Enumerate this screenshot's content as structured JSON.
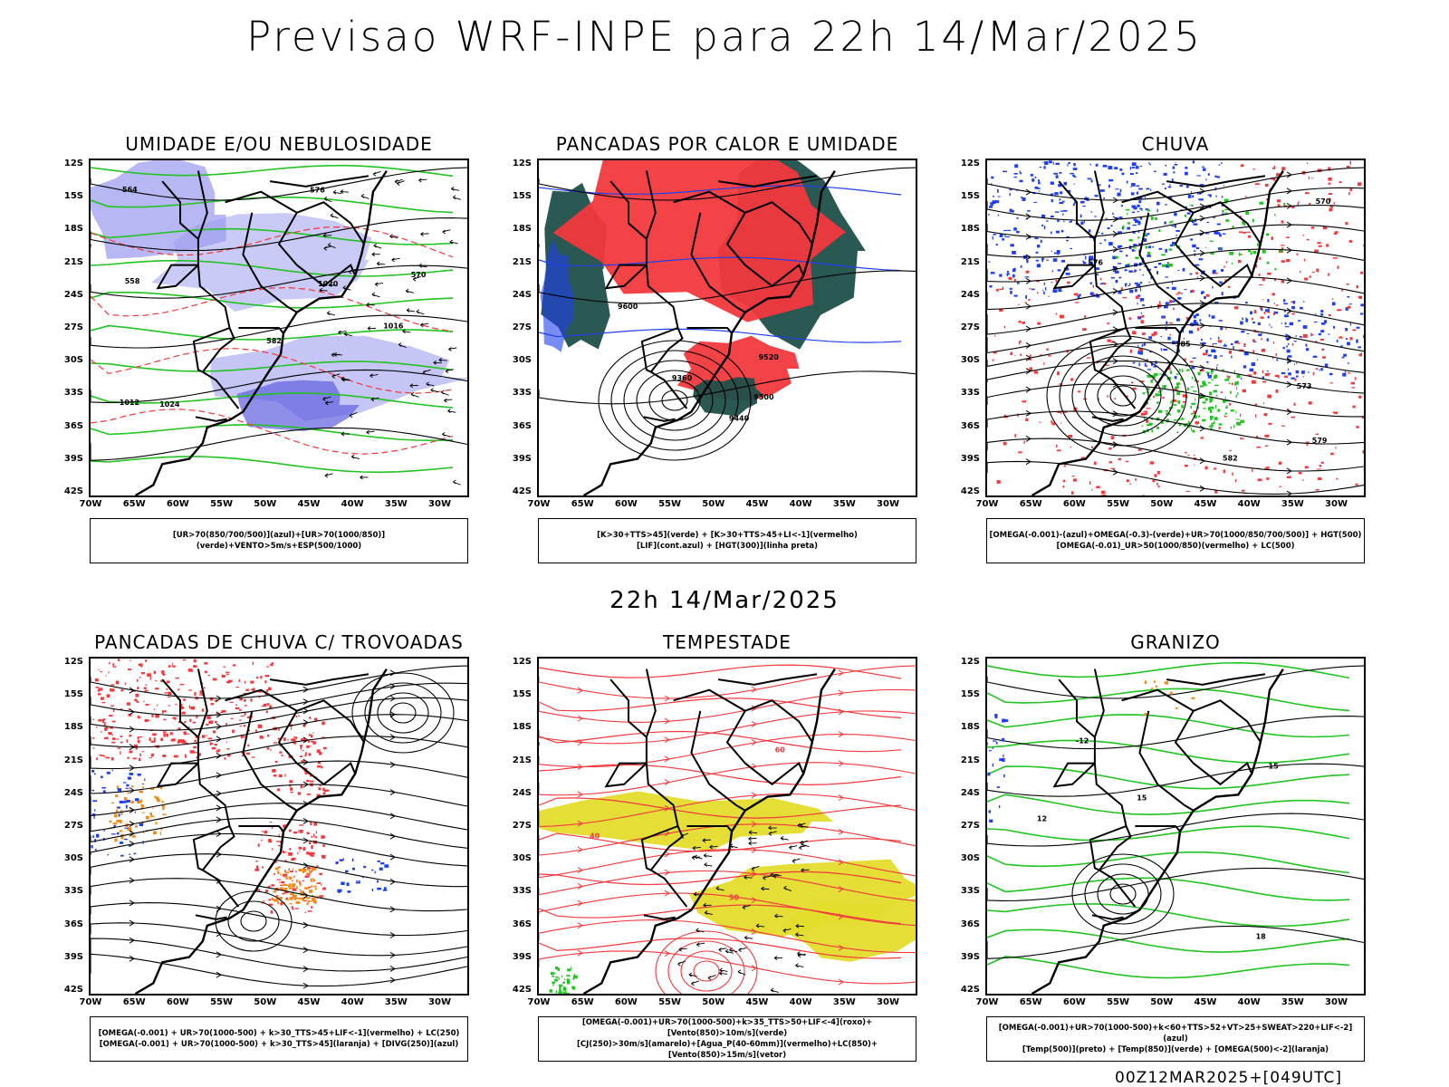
{
  "header": {
    "title": "Previsao WRF-INPE  para 22h 14/Mar/2025",
    "mid_title": "22h 14/Mar/2025",
    "footer": "00Z12MAR2025+[049UTC]"
  },
  "axes": {
    "lat_labels": [
      "12S",
      "15S",
      "18S",
      "21S",
      "24S",
      "27S",
      "30S",
      "33S",
      "36S",
      "39S",
      "42S"
    ],
    "lon_labels": [
      "70W",
      "65W",
      "60W",
      "55W",
      "50W",
      "45W",
      "40W",
      "35W",
      "30W"
    ]
  },
  "panels": [
    {
      "title": "UMIDADE E/OU NEBULOSIDADE",
      "legend": [
        "[UR>70(850/700/500)](azul)+[UR>70(1000/850)](verde)+VENTO>5m/s+ESP(500/1000)"
      ],
      "contour_labels": [
        "1012",
        "1016",
        "1020",
        "1024",
        "570",
        "576",
        "582",
        "564",
        "558"
      ]
    },
    {
      "title": "PANCADAS POR CALOR E UMIDADE",
      "legend": [
        "[K>30+TTS>45](verde) + [K>30+TTS>45+LI<-1](vermelho)",
        "[LIF](cont.azul) + [HGT(300)](linha preta)"
      ],
      "contour_labels": [
        "9600",
        "9520",
        "9440",
        "9360",
        "9500"
      ]
    },
    {
      "title": "CHUVA",
      "legend": [
        "[OMEGA(-0.001)-(azul)+OMEGA(-0.3)-(verde)+UR>70(1000/850/700/500)] + HGT(500)",
        "[OMEGA(-0.01)_UR>50(1000/850)(vermelho) + LC(500)"
      ],
      "contour_labels": [
        "585",
        "582",
        "579",
        "576",
        "573",
        "570"
      ]
    },
    {
      "title": "PANCADAS DE CHUVA C/ TROVOADAS",
      "legend": [
        "[OMEGA(-0.001) + UR>70(1000-500) + k>30_TTS>45+LIF<-1](vermelho) + LC(250)",
        "[OMEGA(-0.001) + UR>70(1000-500) + k>30_TTS>45](laranja) + [DIVG(250)](azul)"
      ],
      "contour_labels": []
    },
    {
      "title": "TEMPESTADE",
      "legend": [
        "[OMEGA(-0.001)+UR>70(1000-500)+k>35_TTS>50+LIF<-4](roxo)+[Vento(850)>10m/s](verde)",
        "[CJ(250)>30m/s](amarelo)+[Agua_P(40-60mm)](vermelho)+LC(850)+[Vento(850)>15m/s](vetor)"
      ],
      "contour_labels": [
        "50",
        "40",
        "60"
      ]
    },
    {
      "title": "GRANIZO",
      "legend": [
        "[OMEGA(-0.001)+UR>70(1000-500)+k<60+TTS>52+VT>25+SWEAT>220+LIF<-2](azul)",
        "[Temp(500)](preto) + [Temp(850)](verde) + [OMEGA(500)<-2](laranja)"
      ],
      "contour_labels": [
        "-12",
        "-15",
        "12",
        "15",
        "18"
      ]
    }
  ],
  "colors": {
    "coast": "#000000",
    "blue_shade": "#9f9ff0",
    "green": "#22c322",
    "red": "#f2393d",
    "dark_teal": "#1f4f4a",
    "blue": "#1f3fef",
    "yellow": "#e3dc2b",
    "orange": "#f08a1a"
  }
}
